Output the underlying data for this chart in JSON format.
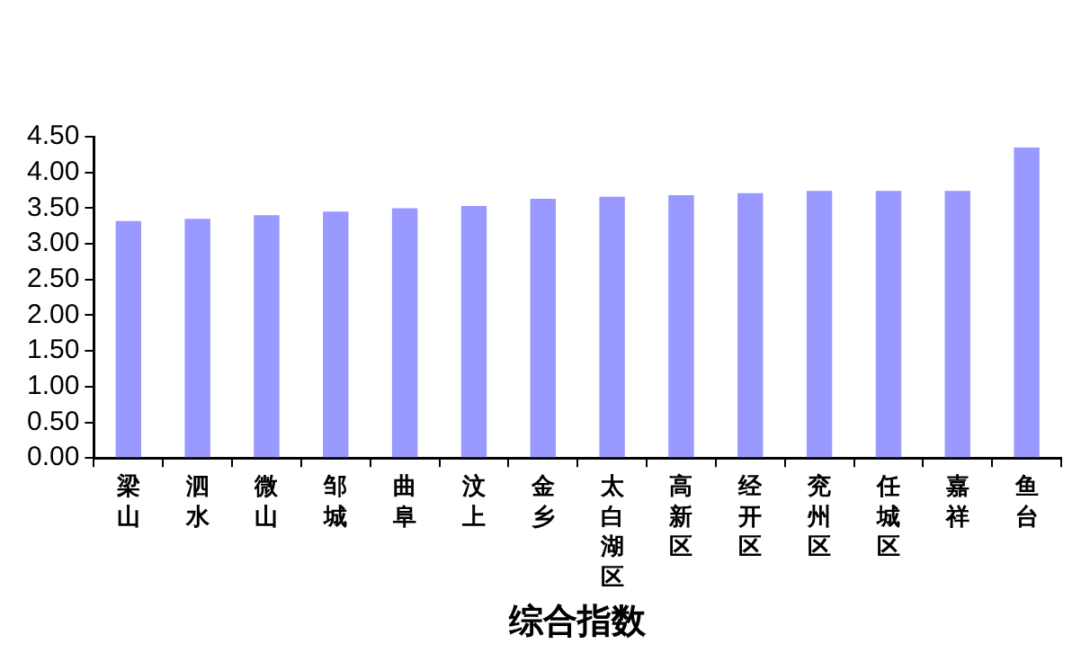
{
  "chart_data": {
    "type": "bar",
    "xlabel": "综合指数",
    "categories": [
      "梁山",
      "泗水",
      "微山",
      "邹城",
      "曲阜",
      "汶上",
      "金乡",
      "太白湖区",
      "高新区",
      "经开区",
      "兖州区",
      "任城区",
      "嘉祥",
      "鱼台"
    ],
    "values": [
      3.32,
      3.35,
      3.4,
      3.45,
      3.5,
      3.53,
      3.63,
      3.66,
      3.68,
      3.71,
      3.74,
      3.74,
      3.74,
      4.35
    ],
    "color": "#9999ff",
    "ylim": [
      0,
      4.5
    ],
    "yticks": [
      {
        "value": 0,
        "label": "0.00"
      },
      {
        "value": 0.5,
        "label": "0.50"
      },
      {
        "value": 1,
        "label": "1.00"
      },
      {
        "value": 1.5,
        "label": "1.50"
      },
      {
        "value": 2,
        "label": "2.00"
      },
      {
        "value": 2.5,
        "label": "2.50"
      },
      {
        "value": 3,
        "label": "3.00"
      },
      {
        "value": 3.5,
        "label": "3.50"
      },
      {
        "value": 4,
        "label": "4.00"
      },
      {
        "value": 4.5,
        "label": "4.50"
      }
    ],
    "grid": false,
    "legend": false
  }
}
